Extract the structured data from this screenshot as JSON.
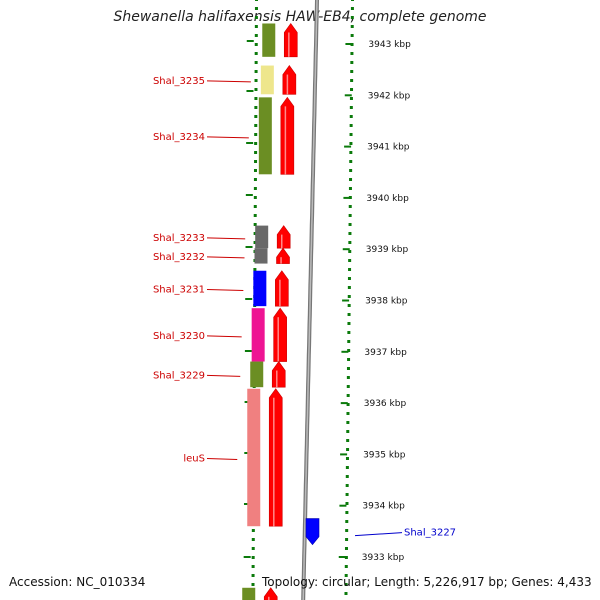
{
  "title": "Shewanella halifaxensis HAW-EB4, complete genome",
  "footer": {
    "accession": "Accession: NC_010334",
    "topology": "Topology: circular; Length: 5,226,917 bp; Genes: 4,433"
  },
  "kbp_ticks": [
    "3943 kbp",
    "3942 kbp",
    "3941 kbp",
    "3940 kbp",
    "3939 kbp",
    "3938 kbp",
    "3937 kbp",
    "3936 kbp",
    "3935 kbp",
    "3934 kbp",
    "3933 kbp"
  ],
  "genes": [
    {
      "id": "upper-green",
      "label": "",
      "color": "#6b8e23",
      "strand": "+",
      "start_kbp": 3943.4,
      "end_kbp": 3942.75
    },
    {
      "id": "shal3235",
      "label": "Shal_3235",
      "color": "#eee68c",
      "strand": "+",
      "start_kbp": 3942.58,
      "end_kbp": 3942.02
    },
    {
      "id": "shal3234",
      "label": "Shal_3234",
      "color": "#6b8e23",
      "strand": "+",
      "start_kbp": 3941.96,
      "end_kbp": 3940.46
    },
    {
      "id": "shal3233",
      "label": "Shal_3233",
      "color": "#696969",
      "strand": "+",
      "start_kbp": 3939.46,
      "end_kbp": 3939.02
    },
    {
      "id": "shal3232",
      "label": "Shal_3232",
      "color": "#696969",
      "strand": "+",
      "start_kbp": 3939.02,
      "end_kbp": 3938.72
    },
    {
      "id": "shal3231",
      "label": "Shal_3231",
      "color": "#0000ff",
      "strand": "+",
      "start_kbp": 3938.58,
      "end_kbp": 3937.89
    },
    {
      "id": "shal3230",
      "label": "Shal_3230",
      "color": "#ee1493",
      "strand": "+",
      "start_kbp": 3937.85,
      "end_kbp": 3936.81
    },
    {
      "id": "shal3229",
      "label": "Shal_3229",
      "color": "#6b8e23",
      "strand": "+",
      "start_kbp": 3936.81,
      "end_kbp": 3936.31
    },
    {
      "id": "leus",
      "label": "leuS",
      "color": "#f08080",
      "strand": "+",
      "start_kbp": 3936.28,
      "end_kbp": 3933.6
    },
    {
      "id": "shal3227",
      "label": "Shal_3227",
      "color": "#0000ff",
      "strand": "-",
      "start_kbp": 3933.75,
      "end_kbp": 3933.24,
      "label_color": "blue"
    },
    {
      "id": "lower-green",
      "label": "",
      "color": "#6b8e23",
      "strand": "+",
      "start_kbp": 3932.4,
      "end_kbp": 3932.05
    }
  ]
}
